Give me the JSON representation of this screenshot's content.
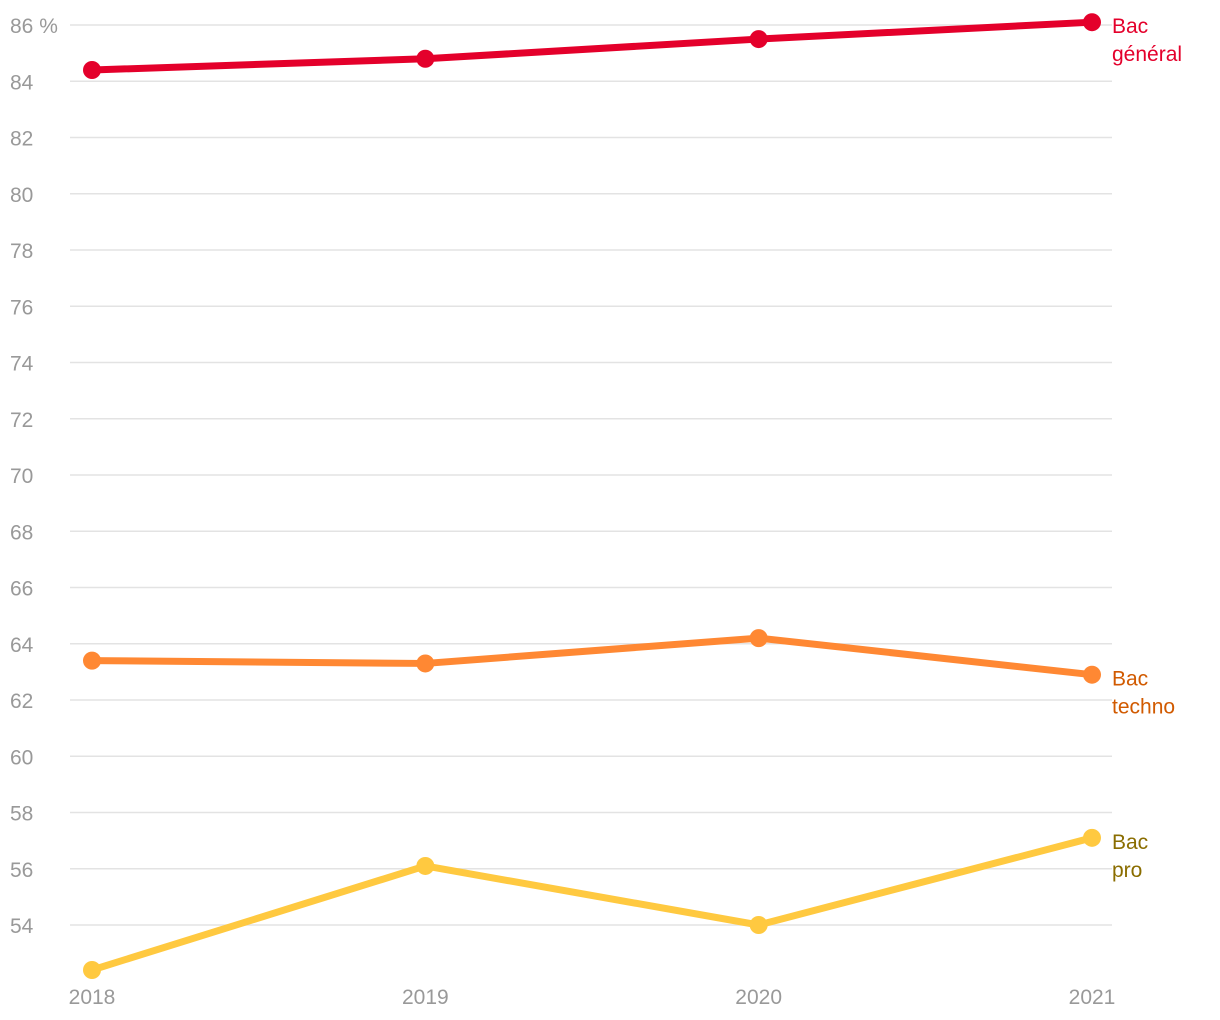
{
  "chart_data": {
    "type": "line",
    "title": "",
    "xlabel": "",
    "ylabel": "",
    "x": [
      "2018",
      "2019",
      "2020",
      "2021"
    ],
    "y_ticks": [
      54,
      56,
      58,
      60,
      62,
      64,
      66,
      68,
      70,
      72,
      74,
      76,
      78,
      80,
      82,
      84,
      86
    ],
    "y_top_tick_label": "86 %",
    "ylim": [
      52.5,
      86
    ],
    "grid": true,
    "legend": "inline labels at right end of lines",
    "series": [
      {
        "name": "Bac général",
        "label_lines": [
          "Bac",
          "général"
        ],
        "color": "#e4002b",
        "label_color": "#e4002b",
        "values": [
          84.4,
          84.8,
          85.5,
          86.1
        ]
      },
      {
        "name": "Bac techno",
        "label_lines": [
          "Bac",
          "techno"
        ],
        "color": "#ff8833",
        "label_color": "#d15a00",
        "values": [
          63.4,
          63.3,
          64.2,
          62.9
        ]
      },
      {
        "name": "Bac pro",
        "label_lines": [
          "Bac",
          "pro"
        ],
        "color": "#ffc940",
        "label_color": "#8a6d00",
        "values": [
          52.4,
          56.1,
          54.0,
          57.1
        ]
      }
    ]
  }
}
